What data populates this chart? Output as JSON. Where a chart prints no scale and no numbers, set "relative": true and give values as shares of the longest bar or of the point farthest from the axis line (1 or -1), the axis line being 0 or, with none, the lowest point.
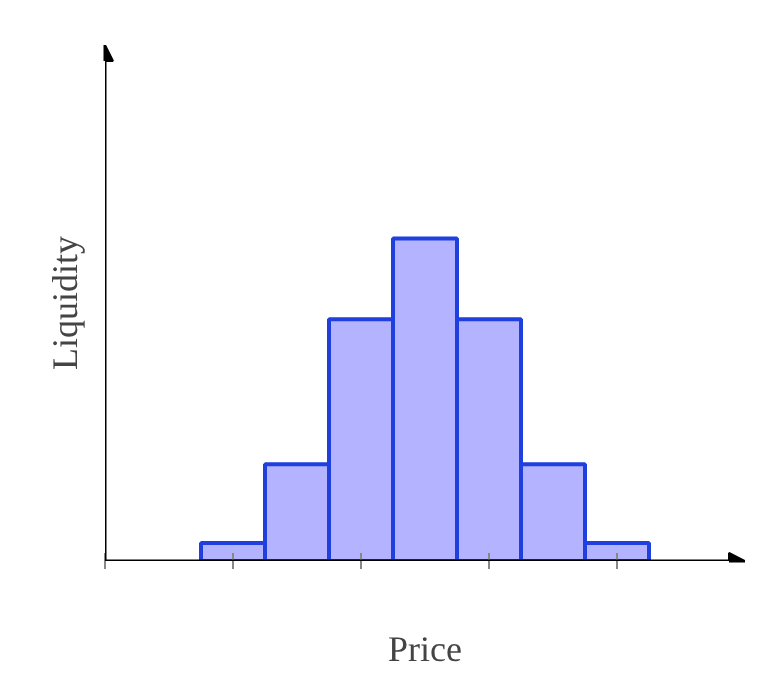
{
  "chart_data": {
    "type": "bar",
    "xlabel": "Price",
    "ylabel": "Liquidity",
    "relative": true,
    "categories": [
      null,
      null,
      null,
      null,
      null,
      null,
      null
    ],
    "values": [
      0.056,
      0.3,
      0.75,
      1,
      0.75,
      0.3,
      0.056
    ],
    "color": "#b3b3ff"
  }
}
